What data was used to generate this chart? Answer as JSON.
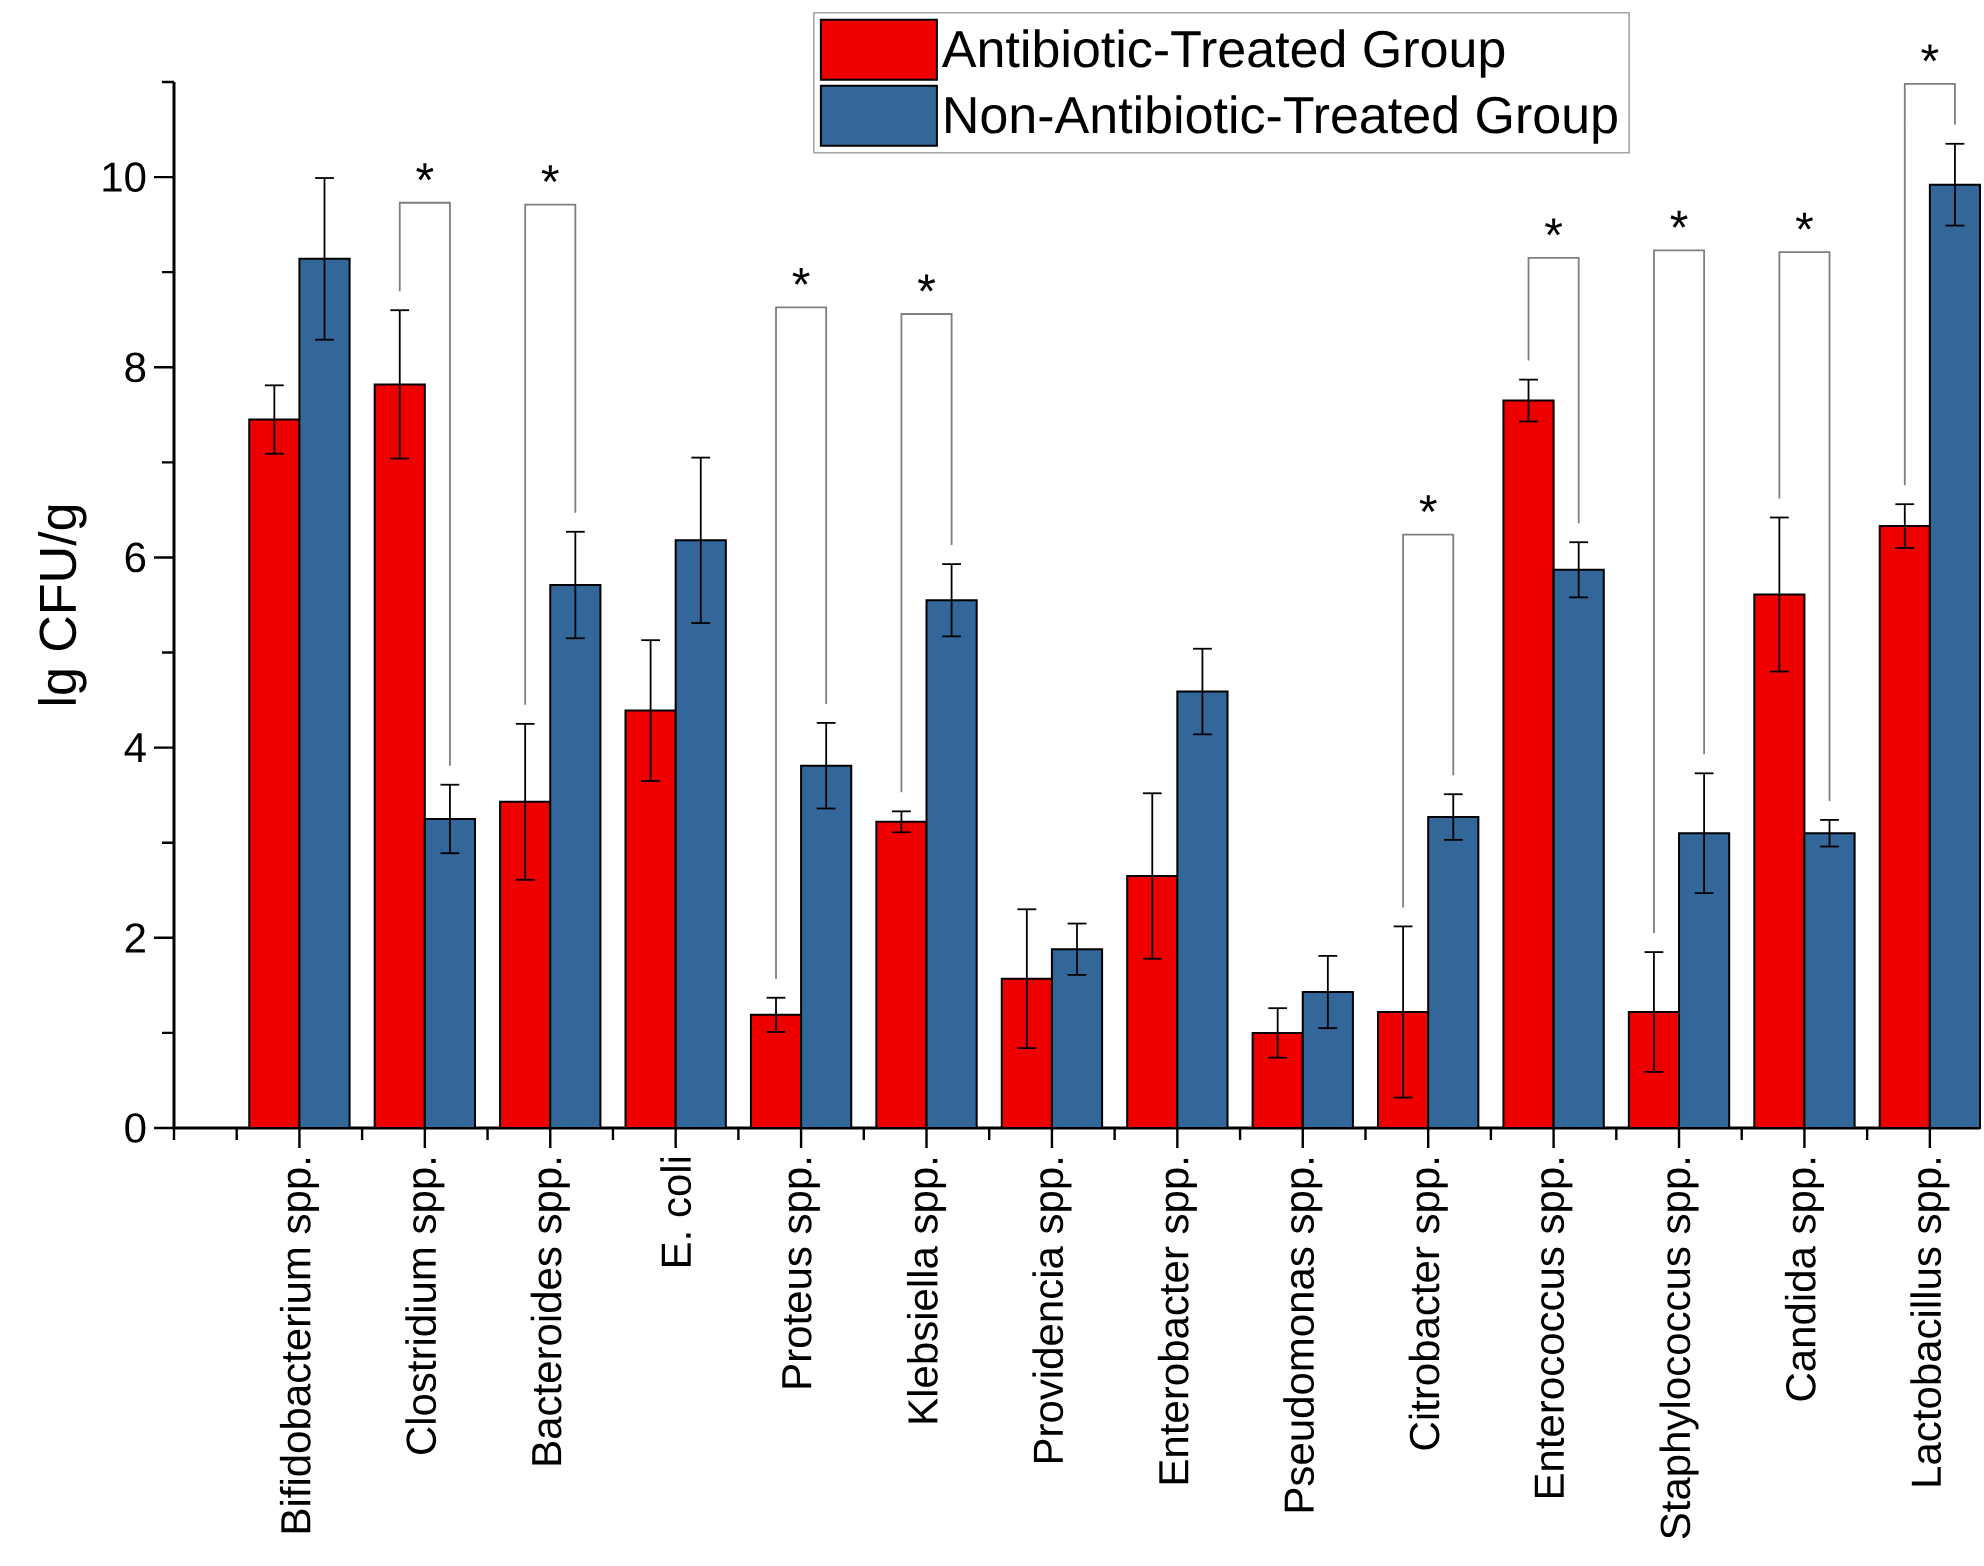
{
  "chart_data": {
    "type": "bar",
    "ylabel": "lg CFU/g",
    "categories": [
      "Bifidobacterium spp.",
      "Clostridium spp.",
      "Bacteroides spp.",
      "E. coli",
      "Proteus spp.",
      "Klebsiella spp.",
      "Providencia spp.",
      "Enterobacter spp.",
      "Pseudomonas spp.",
      "Citrobacter spp.",
      "Enterococcus spp.",
      "Staphylococcus spp.",
      "Candida spp.",
      "Lactobacillus spp."
    ],
    "series": [
      {
        "name": "Antibiotic-Treated Group",
        "color": "#ee0000",
        "values": [
          7.45,
          7.82,
          3.43,
          4.39,
          1.19,
          3.22,
          1.57,
          2.65,
          1.0,
          1.22,
          7.65,
          1.22,
          5.61,
          6.33
        ],
        "errors": [
          0.36,
          0.78,
          0.82,
          0.74,
          0.18,
          0.11,
          0.73,
          0.87,
          0.26,
          0.9,
          0.22,
          0.63,
          0.81,
          0.23
        ]
      },
      {
        "name": "Non-Antibiotic-Treated Group",
        "color": "#336699",
        "values": [
          9.14,
          3.25,
          5.71,
          6.18,
          3.81,
          5.55,
          1.88,
          4.59,
          1.43,
          3.27,
          5.87,
          3.1,
          3.1,
          9.92
        ],
        "errors": [
          0.85,
          0.36,
          0.56,
          0.87,
          0.45,
          0.38,
          0.27,
          0.45,
          0.38,
          0.24,
          0.29,
          0.63,
          0.14,
          0.43
        ]
      }
    ],
    "ylim": [
      0,
      11
    ],
    "yticks": [
      0,
      {
        "value": 1,
        "label": null
      },
      2,
      {
        "value": 3,
        "label": null
      },
      4,
      {
        "value": 5,
        "label": null
      },
      6,
      {
        "value": 7,
        "label": null
      },
      8,
      {
        "value": 9,
        "label": null
      },
      10,
      {
        "value": 11,
        "label": null
      }
    ],
    "legend": "top",
    "annotations": [
      "*",
      "*",
      "*",
      "*",
      "*",
      "*",
      "*",
      "*",
      "*"
    ]
  }
}
